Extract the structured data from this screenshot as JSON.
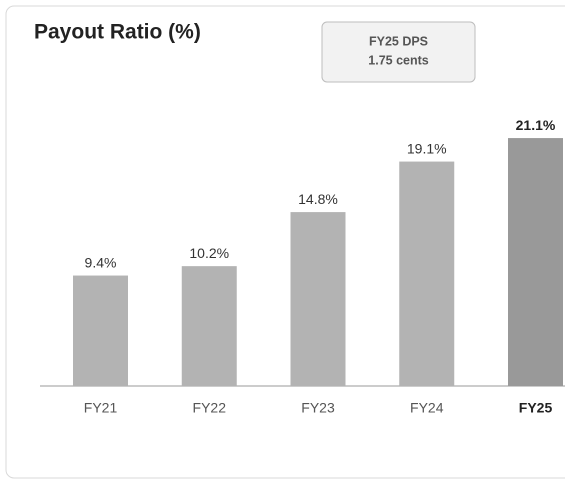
{
  "chart_data": {
    "type": "bar",
    "title": "Payout Ratio (%)",
    "annotations": [
      "FY25 DPS",
      "1.75 cents"
    ],
    "categories": [
      "FY21",
      "FY22",
      "FY23",
      "FY24",
      "FY25"
    ],
    "values": [
      9.4,
      10.2,
      14.8,
      19.1,
      21.1
    ],
    "value_labels": [
      "9.4%",
      "10.2%",
      "14.8%",
      "19.1%",
      "21.1%"
    ],
    "colors": [
      "#b3b3b3",
      "#b3b3b3",
      "#b3b3b3",
      "#b3b3b3",
      "#999999"
    ]
  }
}
